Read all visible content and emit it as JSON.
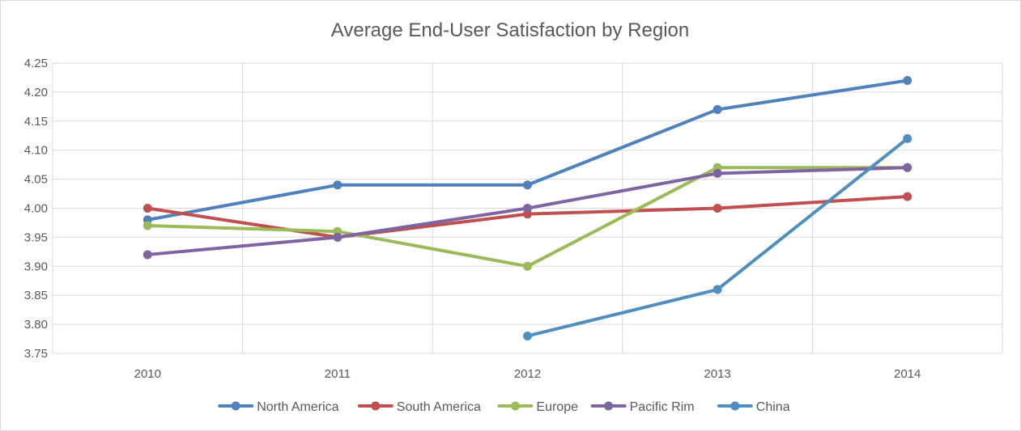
{
  "chart_data": {
    "type": "line",
    "title": "Average End-User Satisfaction by Region",
    "xlabel": "",
    "ylabel": "",
    "categories": [
      "2010",
      "2011",
      "2012",
      "2013",
      "2014"
    ],
    "ylim": [
      3.75,
      4.25
    ],
    "yticks": [
      "3.75",
      "3.80",
      "3.85",
      "3.90",
      "3.95",
      "4.00",
      "4.05",
      "4.10",
      "4.15",
      "4.20",
      "4.25"
    ],
    "grid": true,
    "legend_position": "bottom",
    "series": [
      {
        "name": "North America",
        "color": "#4f81bd",
        "values": [
          3.98,
          4.04,
          4.04,
          4.17,
          4.22
        ]
      },
      {
        "name": "South America",
        "color": "#c0504d",
        "values": [
          4.0,
          3.95,
          3.99,
          4.0,
          4.02
        ]
      },
      {
        "name": "Europe",
        "color": "#9bbb59",
        "values": [
          3.97,
          3.96,
          3.9,
          4.07,
          4.07
        ]
      },
      {
        "name": "Pacific Rim",
        "color": "#8064a2",
        "values": [
          3.92,
          3.95,
          4.0,
          4.06,
          4.07
        ]
      },
      {
        "name": "China",
        "color": "#4f8fc0",
        "values": [
          null,
          null,
          3.78,
          3.86,
          4.12
        ]
      }
    ]
  }
}
